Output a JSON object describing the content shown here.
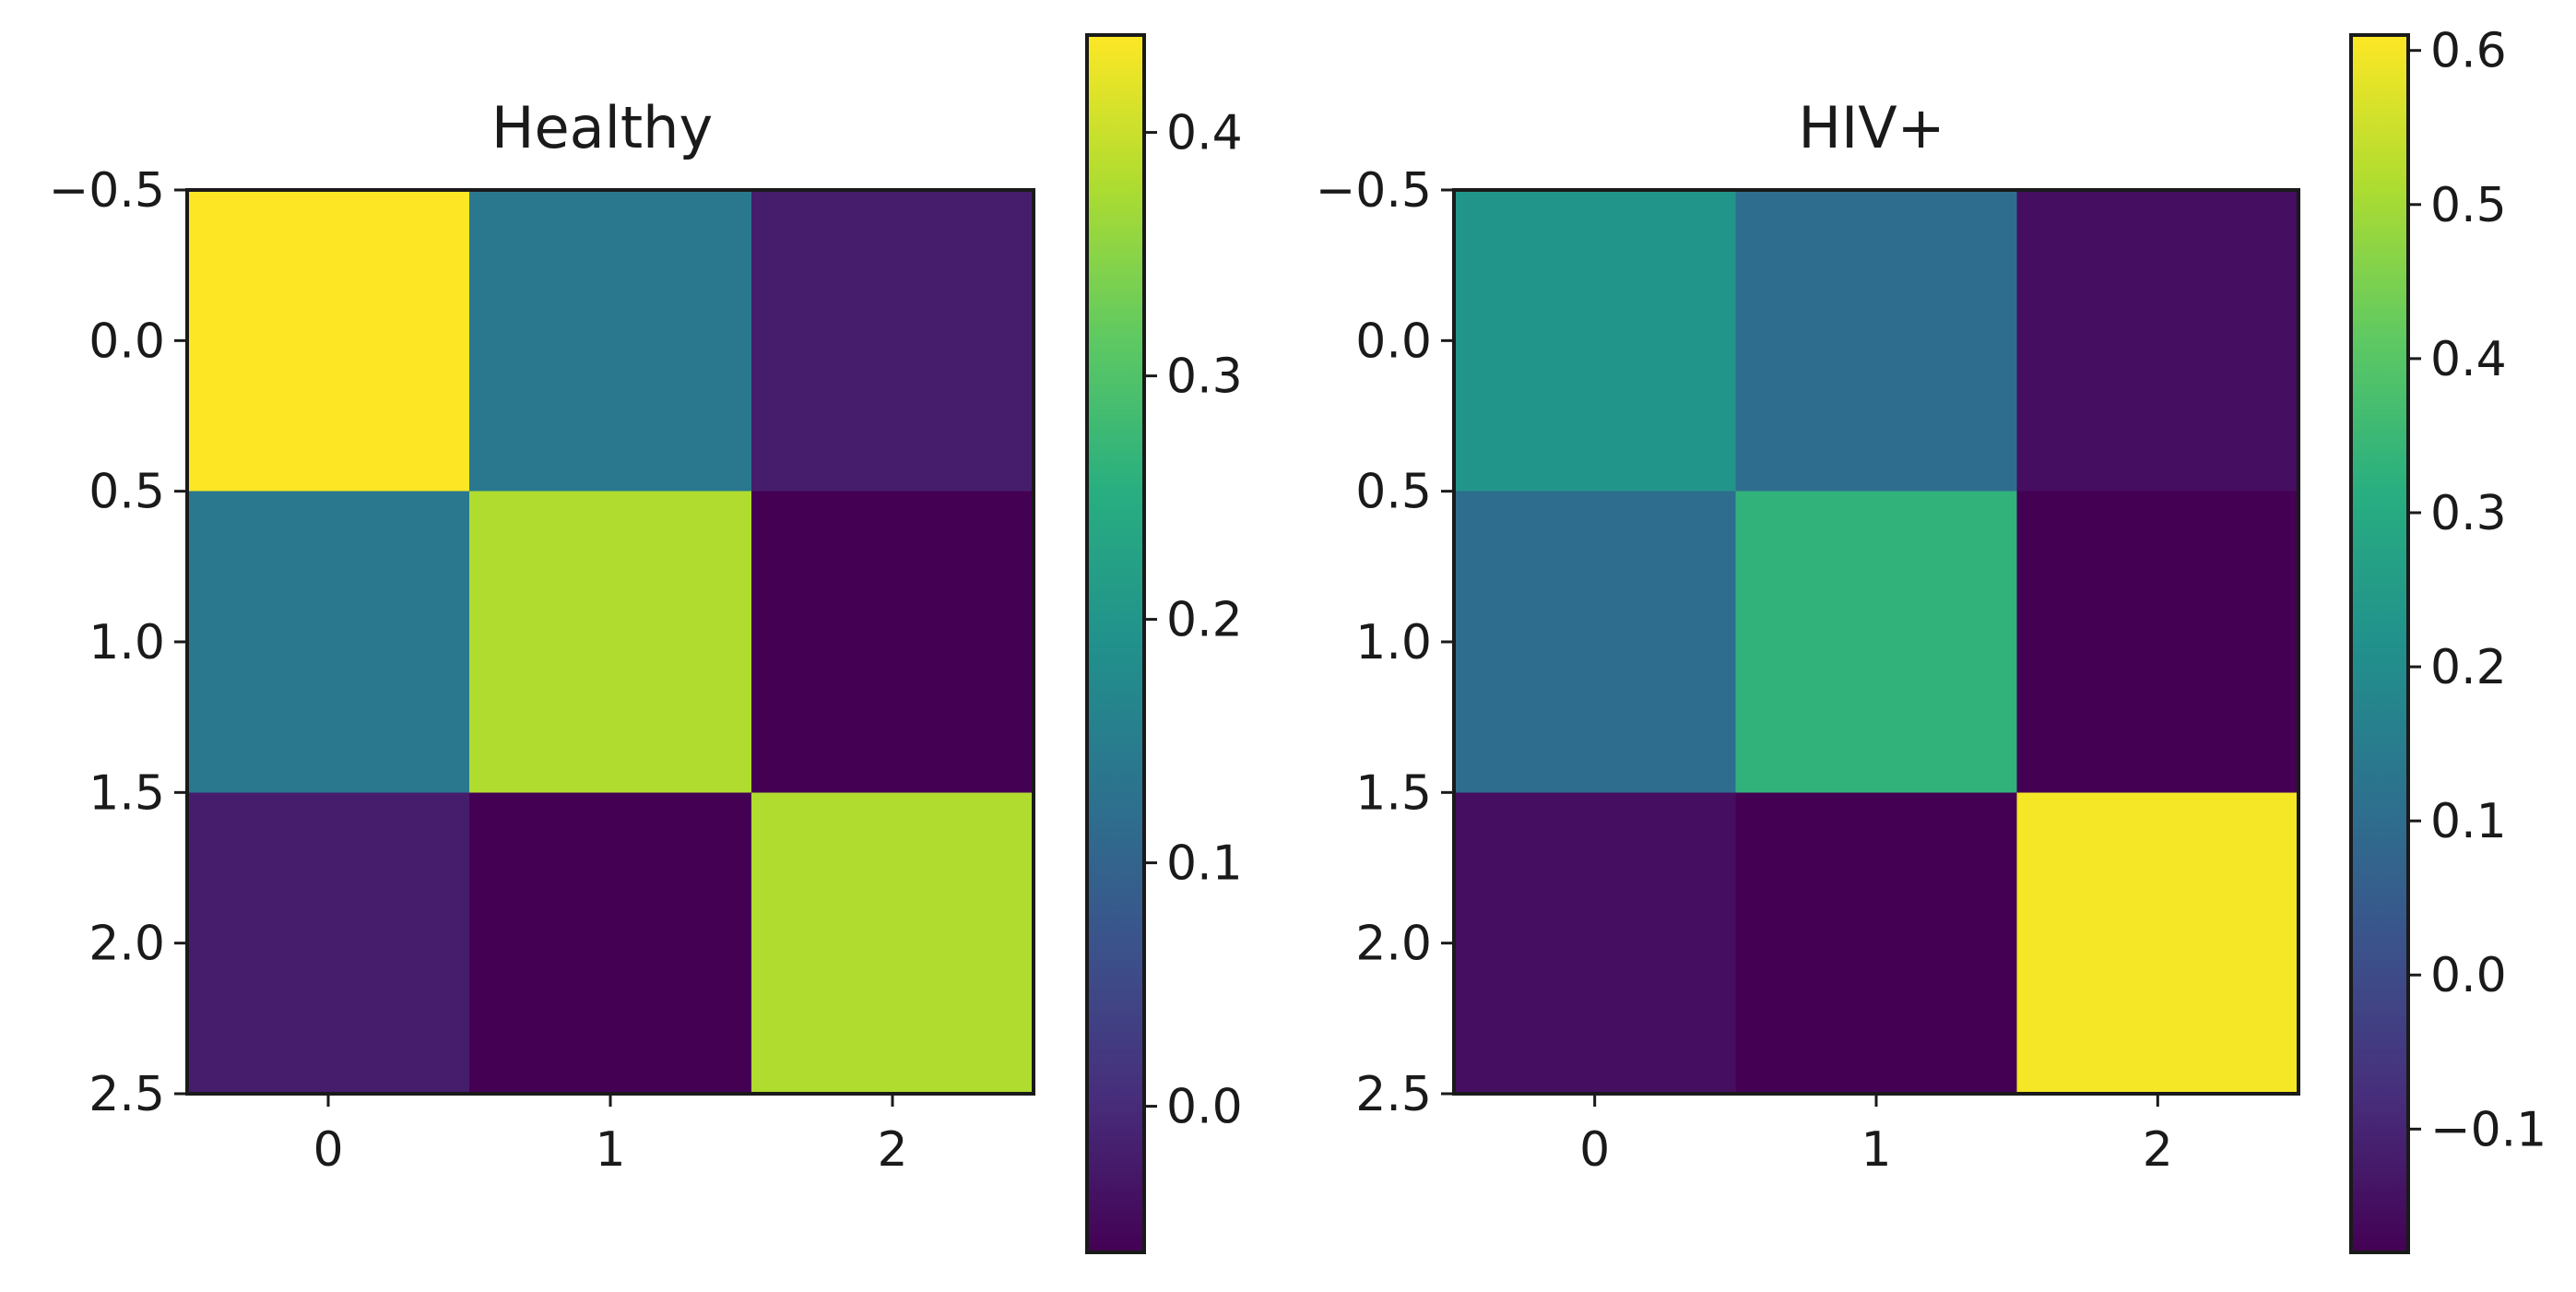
{
  "chart_data": [
    {
      "type": "heatmap",
      "title": "Healthy",
      "xlabel": "",
      "ylabel": "",
      "x_categories": [
        "0",
        "1",
        "2"
      ],
      "y_categories": [
        "0",
        "1",
        "2"
      ],
      "x_ticks": [
        "0",
        "1",
        "2"
      ],
      "y_ticks": [
        "−0.5",
        "0.0",
        "0.5",
        "1.0",
        "1.5",
        "2.0",
        "2.5"
      ],
      "xlim": [
        -0.5,
        2.5
      ],
      "ylim": [
        2.5,
        -0.5
      ],
      "values": [
        [
          0.44,
          0.14,
          -0.02
        ],
        [
          0.14,
          0.38,
          -0.06
        ],
        [
          -0.02,
          -0.06,
          0.38
        ]
      ],
      "colormap": "viridis",
      "colorbar": {
        "range": [
          -0.06,
          0.44
        ],
        "ticks": [
          0.0,
          0.1,
          0.2,
          0.3,
          0.4
        ],
        "tick_labels": [
          "0.0",
          "0.1",
          "0.2",
          "0.3",
          "0.4"
        ]
      }
    },
    {
      "type": "heatmap",
      "title": "HIV+",
      "xlabel": "",
      "ylabel": "",
      "x_categories": [
        "0",
        "1",
        "2"
      ],
      "y_categories": [
        "0",
        "1",
        "2"
      ],
      "x_ticks": [
        "0",
        "1",
        "2"
      ],
      "y_ticks": [
        "−0.5",
        "0.0",
        "0.5",
        "1.0",
        "1.5",
        "2.0",
        "2.5"
      ],
      "xlim": [
        -0.5,
        2.5
      ],
      "ylim": [
        2.5,
        -0.5
      ],
      "values": [
        [
          0.23,
          0.1,
          -0.15
        ],
        [
          0.1,
          0.33,
          -0.18
        ],
        [
          -0.15,
          -0.18,
          0.6
        ]
      ],
      "colormap": "viridis",
      "colorbar": {
        "range": [
          -0.18,
          0.61
        ],
        "ticks": [
          -0.1,
          0.0,
          0.1,
          0.2,
          0.3,
          0.4,
          0.5,
          0.6
        ],
        "tick_labels": [
          "−0.1",
          "0.0",
          "0.1",
          "0.2",
          "0.3",
          "0.4",
          "0.5",
          "0.6"
        ]
      }
    }
  ]
}
